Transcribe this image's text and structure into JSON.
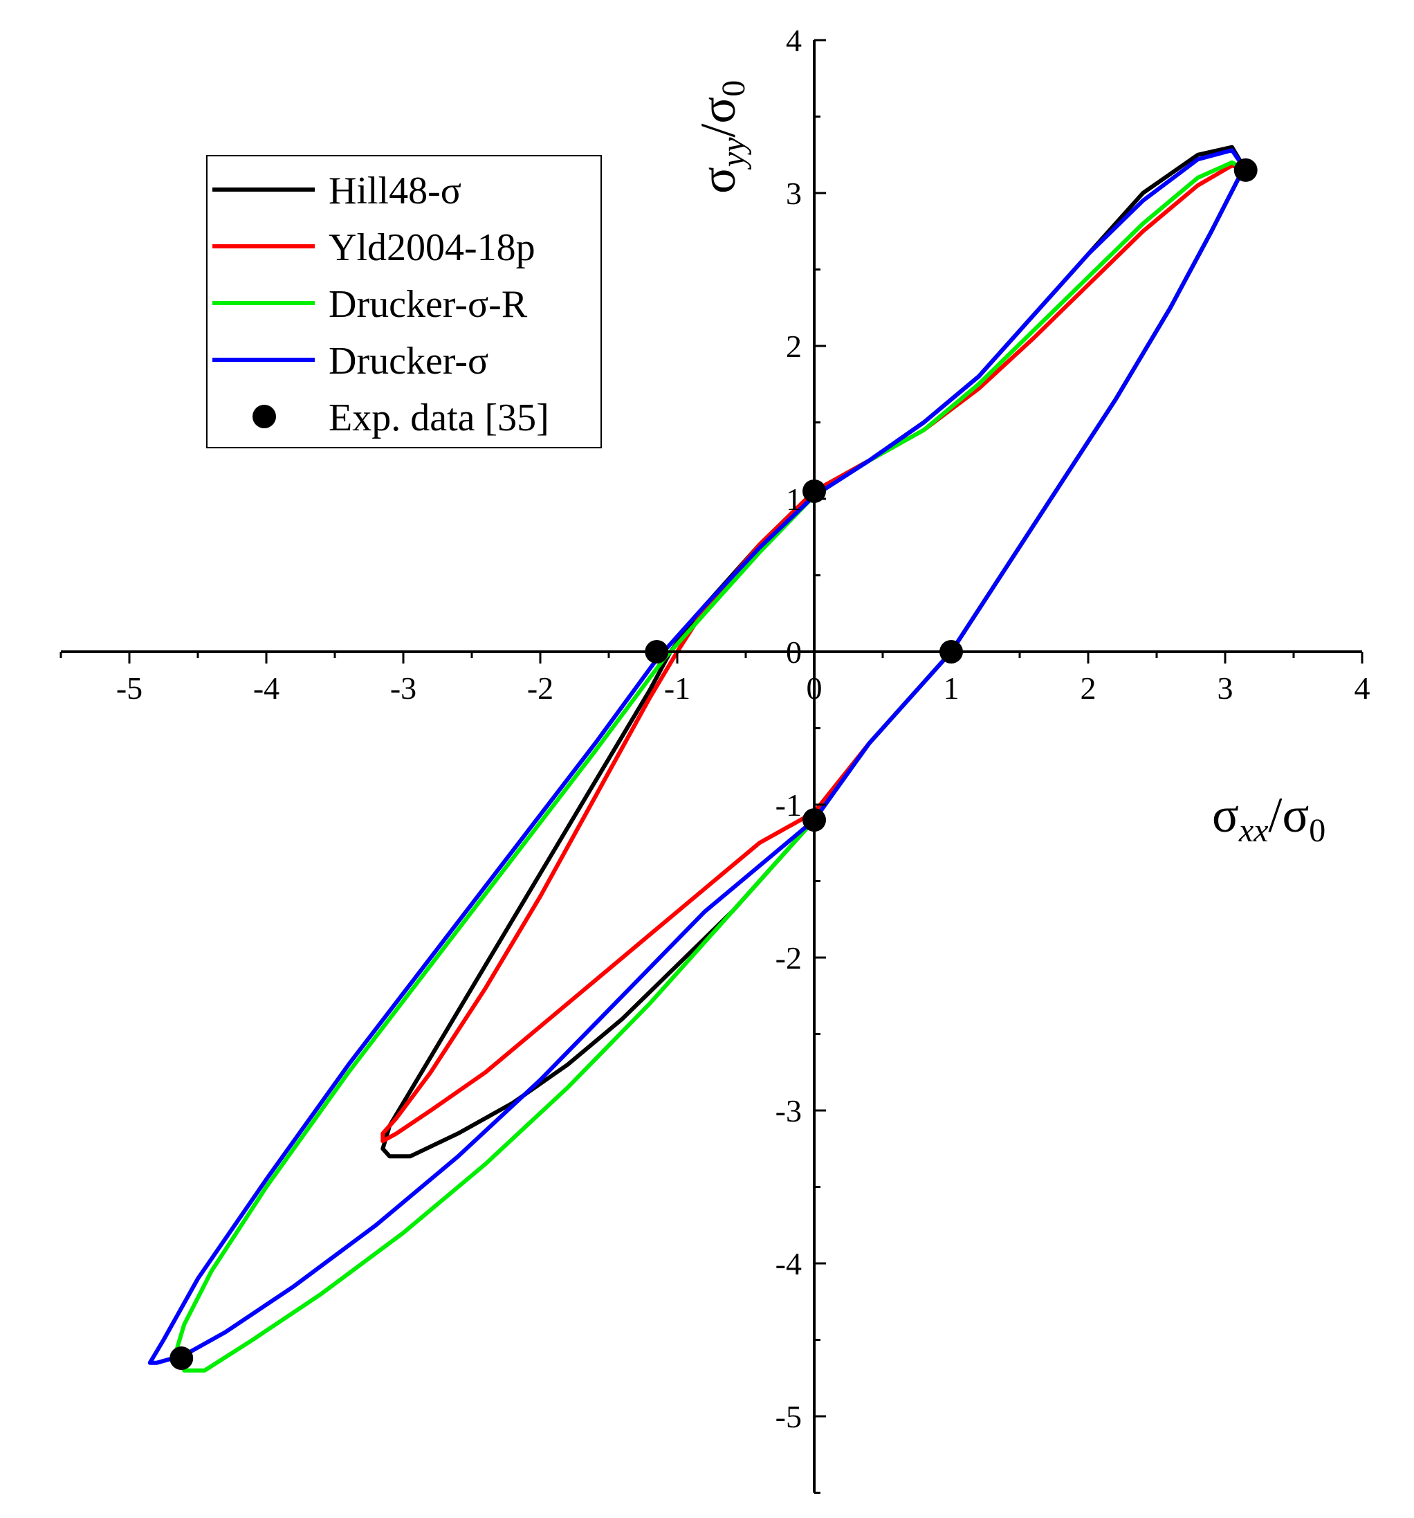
{
  "chart_data": {
    "type": "line",
    "title": "",
    "xlabel": "σ_xx/σ_0",
    "ylabel": "σ_yy/σ_0",
    "xlabel_parts": {
      "sym": "σ",
      "sub": "xx",
      "sep": "/",
      "sym2": "σ",
      "sub2": "0"
    },
    "ylabel_parts": {
      "sym": "σ",
      "sub": "yy",
      "sep": "/",
      "sym2": "σ",
      "sub2": "0"
    },
    "xlim": [
      -5.5,
      4
    ],
    "ylim": [
      -5.5,
      4
    ],
    "xticks": [
      -5,
      -4,
      -3,
      -2,
      -1,
      0,
      1,
      2,
      3,
      4
    ],
    "yticks": [
      -5,
      -4,
      -3,
      -2,
      -1,
      0,
      1,
      2,
      3,
      4
    ],
    "xtick_labels": [
      "-5",
      "-4",
      "-3",
      "-2",
      "-1",
      "0",
      "1",
      "2",
      "3",
      "4"
    ],
    "ytick_labels": [
      "-5",
      "-4",
      "-3",
      "-2",
      "-1",
      "0",
      "1",
      "2",
      "3",
      "4"
    ],
    "grid": false,
    "legend_position": "top-left",
    "series": [
      {
        "name": "Hill48-σ",
        "color": "#000000",
        "x": [
          3.15,
          3.05,
          2.8,
          2.4,
          2.0,
          1.6,
          1.2,
          0.8,
          0.4,
          0.0,
          -0.4,
          -0.8,
          -1.05,
          -1.2,
          -1.6,
          -2.0,
          -2.4,
          -2.8,
          -3.1,
          -3.15,
          -3.1,
          -2.95,
          -2.6,
          -2.2,
          -1.8,
          -1.4,
          -1.0,
          -0.6,
          -0.2,
          0.0,
          0.4,
          0.8,
          1.0,
          1.4,
          1.8,
          2.2,
          2.6,
          2.9,
          3.1,
          3.15
        ],
        "y": [
          3.15,
          3.3,
          3.25,
          3.0,
          2.6,
          2.2,
          1.8,
          1.5,
          1.25,
          1.05,
          0.7,
          0.3,
          0.0,
          -0.25,
          -0.85,
          -1.45,
          -2.05,
          -2.65,
          -3.1,
          -3.25,
          -3.3,
          -3.3,
          -3.15,
          -2.95,
          -2.7,
          -2.4,
          -2.05,
          -1.7,
          -1.3,
          -1.1,
          -0.6,
          -0.2,
          0.0,
          0.55,
          1.1,
          1.65,
          2.25,
          2.75,
          3.1,
          3.15
        ]
      },
      {
        "name": "Yld2004-18p",
        "color": "#ff0000",
        "x": [
          3.15,
          3.05,
          2.8,
          2.4,
          2.0,
          1.6,
          1.2,
          0.8,
          0.4,
          0.0,
          -0.4,
          -0.8,
          -1.0,
          -1.2,
          -1.6,
          -2.0,
          -2.4,
          -2.8,
          -3.05,
          -3.15,
          -3.15,
          -3.05,
          -2.8,
          -2.4,
          -2.0,
          -1.6,
          -1.2,
          -0.8,
          -0.4,
          0.0,
          0.4,
          0.8,
          1.0,
          1.4,
          1.8,
          2.2,
          2.6,
          2.9,
          3.1,
          3.15
        ],
        "y": [
          3.15,
          3.18,
          3.05,
          2.75,
          2.4,
          2.05,
          1.72,
          1.45,
          1.25,
          1.05,
          0.7,
          0.28,
          0.0,
          -0.3,
          -0.95,
          -1.6,
          -2.2,
          -2.75,
          -3.05,
          -3.15,
          -3.2,
          -3.15,
          -3.0,
          -2.75,
          -2.45,
          -2.15,
          -1.85,
          -1.55,
          -1.25,
          -1.05,
          -0.6,
          -0.2,
          0.0,
          0.55,
          1.1,
          1.65,
          2.25,
          2.75,
          3.1,
          3.15
        ]
      },
      {
        "name": "Drucker-σ-R",
        "color": "#00ee00",
        "x": [
          3.15,
          3.05,
          2.8,
          2.4,
          2.0,
          1.6,
          1.2,
          0.8,
          0.4,
          0.0,
          -0.4,
          -0.8,
          -1.1,
          -1.6,
          -2.2,
          -2.8,
          -3.4,
          -4.0,
          -4.4,
          -4.6,
          -4.65,
          -4.6,
          -4.45,
          -4.1,
          -3.6,
          -3.0,
          -2.4,
          -1.8,
          -1.2,
          -0.6,
          -0.2,
          0.0,
          0.4,
          0.8,
          1.0,
          1.4,
          1.8,
          2.2,
          2.6,
          2.9,
          3.1,
          3.15
        ],
        "y": [
          3.15,
          3.2,
          3.1,
          2.8,
          2.45,
          2.1,
          1.75,
          1.45,
          1.25,
          1.02,
          0.65,
          0.25,
          -0.05,
          -0.65,
          -1.35,
          -2.05,
          -2.75,
          -3.5,
          -4.05,
          -4.4,
          -4.55,
          -4.7,
          -4.7,
          -4.5,
          -4.2,
          -3.8,
          -3.35,
          -2.85,
          -2.3,
          -1.7,
          -1.3,
          -1.1,
          -0.6,
          -0.2,
          0.0,
          0.55,
          1.1,
          1.65,
          2.25,
          2.75,
          3.1,
          3.15
        ]
      },
      {
        "name": "Drucker-σ",
        "color": "#0000ff",
        "x": [
          3.15,
          3.05,
          2.8,
          2.4,
          2.0,
          1.6,
          1.2,
          0.8,
          0.4,
          0.0,
          -0.4,
          -0.8,
          -1.15,
          -1.6,
          -2.2,
          -2.8,
          -3.4,
          -4.0,
          -4.5,
          -4.75,
          -4.85,
          -4.8,
          -4.6,
          -4.3,
          -3.8,
          -3.2,
          -2.6,
          -2.0,
          -1.4,
          -0.8,
          -0.2,
          0.0,
          0.4,
          0.8,
          1.0,
          1.4,
          1.8,
          2.2,
          2.6,
          2.9,
          3.1,
          3.15
        ],
        "y": [
          3.15,
          3.28,
          3.22,
          2.95,
          2.6,
          2.2,
          1.8,
          1.5,
          1.25,
          1.02,
          0.68,
          0.3,
          -0.05,
          -0.6,
          -1.3,
          -2.0,
          -2.7,
          -3.45,
          -4.1,
          -4.5,
          -4.65,
          -4.65,
          -4.6,
          -4.45,
          -4.15,
          -3.75,
          -3.3,
          -2.8,
          -2.25,
          -1.7,
          -1.25,
          -1.1,
          -0.6,
          -0.2,
          0.0,
          0.55,
          1.1,
          1.65,
          2.25,
          2.75,
          3.1,
          3.15
        ]
      }
    ],
    "points": {
      "name": "Exp. data [35]",
      "color": "#000000",
      "x": [
        3.15,
        0.0,
        -1.15,
        1.0,
        0.0,
        -4.62
      ],
      "y": [
        3.15,
        1.05,
        0.0,
        0.0,
        -1.1,
        -4.62
      ]
    }
  }
}
